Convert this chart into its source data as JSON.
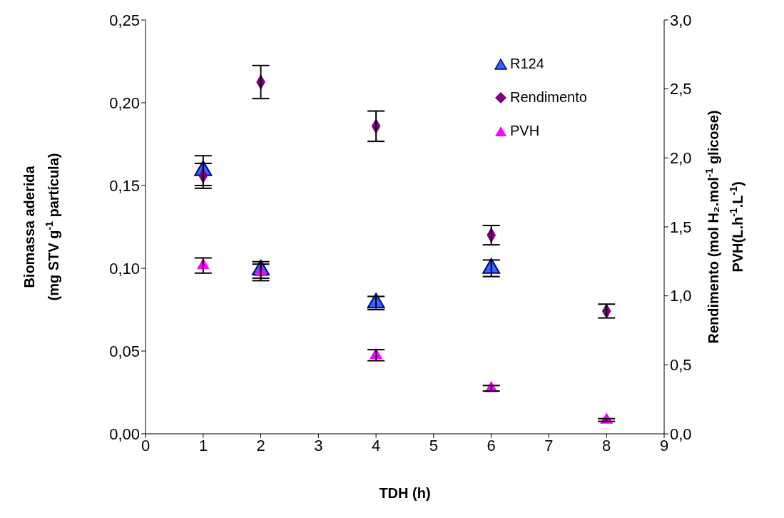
{
  "chart_data": {
    "type": "scatter",
    "xlabel": "TDH (h)",
    "ylabel": "Biomassa aderida\n(mg STV g$^{-1}$ partícula)",
    "y2label": "Rendimento (mol H₂.mol$^{-1}$ glicose)\nPVH(L.h$^{-1}$.L$^{-1}$)",
    "x": [
      1,
      2,
      4,
      6,
      8
    ],
    "xlim": [
      0,
      9
    ],
    "xticks": [
      0,
      1,
      2,
      3,
      4,
      5,
      6,
      7,
      8,
      9
    ],
    "ylim": [
      0,
      0.25
    ],
    "yticks": [
      {
        "value": 0,
        "label": "0,00"
      },
      {
        "value": 0.05,
        "label": "0,05"
      },
      {
        "value": 0.1,
        "label": "0,10"
      },
      {
        "value": 0.15,
        "label": "0,15"
      },
      {
        "value": 0.2,
        "label": "0,20"
      },
      {
        "value": 0.25,
        "label": "0,25"
      }
    ],
    "y2lim": [
      0,
      3
    ],
    "y2ticks": [
      {
        "value": 0,
        "label": "0,0"
      },
      {
        "value": 0.5,
        "label": "0,5"
      },
      {
        "value": 1,
        "label": "1,0"
      },
      {
        "value": 1.5,
        "label": "1,5"
      },
      {
        "value": 2,
        "label": "2,0"
      },
      {
        "value": 2.5,
        "label": "2,5"
      },
      {
        "value": 3,
        "label": "3,0"
      }
    ],
    "legend": "top right",
    "series": [
      {
        "name": "R124",
        "color": "#3366ff",
        "marker": "triangle",
        "values": [
          0.159,
          0.099,
          0.079,
          0.1,
          null
        ],
        "errors": [
          0.009,
          0.005,
          0.004,
          0.005,
          null
        ]
      },
      {
        "name": "Rendimento",
        "color": "#800080",
        "marker": "diamond",
        "axis": "y2",
        "values": [
          1.87,
          2.55,
          2.23,
          1.44,
          0.89
        ],
        "errors": [
          0.09,
          0.12,
          0.11,
          0.07,
          0.05
        ]
      },
      {
        "name": "PVH",
        "color": "#ff00ff",
        "marker": "triangle",
        "axis": "y2",
        "values": [
          1.22,
          1.17,
          0.57,
          0.33,
          0.1
        ],
        "errors": [
          0.055,
          0.06,
          0.04,
          0.02,
          0.01
        ]
      }
    ]
  }
}
